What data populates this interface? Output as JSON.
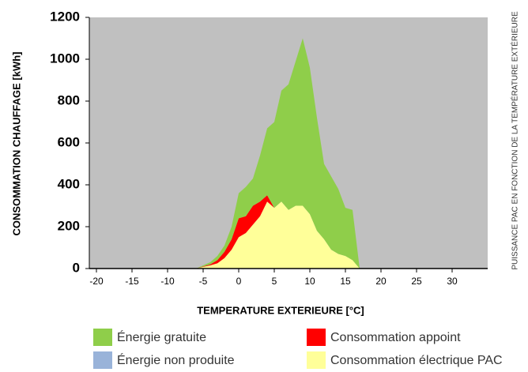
{
  "chart_data": {
    "type": "stacked_area",
    "x_label": "TEMPERATURE EXTERIEURE [°C]",
    "y_label": "CONSOMMATION CHAUFFAGE [kWh]",
    "annotation": "PUISSANCE PAC EN FONCTION DE LA TEMPÉRATURE EXTÉRIEURE",
    "x": [
      -6,
      -5,
      -4,
      -3,
      -2,
      -1,
      0,
      1,
      2,
      3,
      4,
      5,
      6,
      7,
      8,
      9,
      10,
      11,
      12,
      13,
      14,
      15,
      16,
      17
    ],
    "series": [
      {
        "name": "Consommation électrique PAC",
        "color": "#ffff99",
        "values": [
          0,
          8,
          15,
          25,
          50,
          90,
          150,
          170,
          210,
          250,
          320,
          290,
          320,
          280,
          300,
          300,
          260,
          180,
          140,
          90,
          70,
          60,
          40,
          0
        ]
      },
      {
        "name": "Consommation appoint",
        "color": "#ff0000",
        "values": [
          0,
          2,
          5,
          15,
          30,
          50,
          90,
          80,
          90,
          70,
          30,
          0,
          0,
          0,
          0,
          0,
          0,
          0,
          0,
          0,
          0,
          0,
          0,
          0
        ]
      },
      {
        "name": "Énergie non produite",
        "color": "#99b3d9",
        "values": [
          0,
          0,
          0,
          0,
          0,
          0,
          0,
          0,
          0,
          0,
          0,
          0,
          0,
          0,
          0,
          0,
          0,
          0,
          0,
          0,
          0,
          0,
          0,
          0
        ]
      },
      {
        "name": "Énergie gratuite",
        "color": "#8fce4a",
        "values": [
          0,
          5,
          10,
          20,
          30,
          60,
          120,
          140,
          130,
          220,
          320,
          410,
          530,
          600,
          690,
          800,
          700,
          540,
          360,
          350,
          310,
          230,
          240,
          0
        ]
      }
    ],
    "xlim": [
      -21,
      35
    ],
    "ylim": [
      0,
      1200
    ],
    "xticks": [
      -20,
      -15,
      -10,
      -5,
      0,
      5,
      10,
      15,
      20,
      25,
      30
    ],
    "yticks": [
      0,
      200,
      400,
      600,
      800,
      1000,
      1200
    ],
    "plot_background": "#c0c0c0"
  }
}
